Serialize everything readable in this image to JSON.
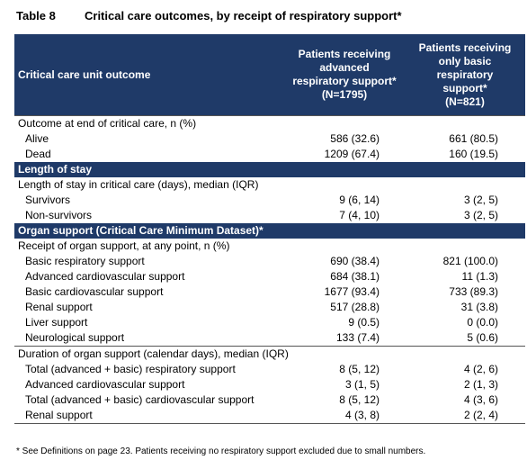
{
  "title": {
    "number": "Table 8",
    "text": "Critical care outcomes, by receipt of respiratory support*"
  },
  "table": {
    "columns": [
      {
        "lines": [
          "Critical care unit outcome"
        ]
      },
      {
        "lines": [
          "Patients receiving",
          "advanced",
          "respiratory support*",
          "(N=1795)"
        ]
      },
      {
        "lines": [
          "Patients receiving",
          "only basic",
          "respiratory",
          "support*",
          "(N=821)"
        ]
      }
    ],
    "sections": [
      {
        "groups": [
          {
            "label": "Outcome at end of critical care, n (%)",
            "rows": [
              [
                "Alive",
                "586 (32.6)",
                "661 (80.5)"
              ],
              [
                "Dead",
                "1209 (67.4)",
                "160 (19.5)"
              ]
            ]
          }
        ]
      },
      {
        "title": "Length of stay",
        "groups": [
          {
            "label": "Length of stay in critical care (days), median (IQR)",
            "rows": [
              [
                "Survivors",
                "9 (6, 14)",
                "3 (2, 5)"
              ],
              [
                "Non-survivors",
                "7 (4, 10)",
                "3 (2, 5)"
              ]
            ]
          }
        ]
      },
      {
        "title": "Organ support (Critical Care Minimum Dataset)*",
        "groups": [
          {
            "label": "Receipt of organ support, at any point, n (%)",
            "rows": [
              [
                "Basic respiratory support",
                "690 (38.4)",
                "821 (100.0)"
              ],
              [
                "Advanced cardiovascular support",
                "684 (38.1)",
                "11 (1.3)"
              ],
              [
                "Basic cardiovascular support",
                "1677 (93.4)",
                "733 (89.3)"
              ],
              [
                "Renal support",
                "517 (28.8)",
                "31 (3.8)"
              ],
              [
                "Liver support",
                "9 (0.5)",
                "0 (0.0)"
              ],
              [
                "Neurological support",
                "133 (7.4)",
                "5 (0.6)"
              ]
            ]
          },
          {
            "label": "Duration of organ support (calendar days), median (IQR)",
            "rows": [
              [
                "Total (advanced + basic) respiratory support",
                "8 (5, 12)",
                "4 (2, 6)"
              ],
              [
                "Advanced cardiovascular support",
                "3 (1, 5)",
                "2 (1, 3)"
              ],
              [
                "Total (advanced + basic) cardiovascular support",
                "8 (5, 12)",
                "4 (3, 6)"
              ],
              [
                "Renal support",
                "4 (3, 8)",
                "2 (2, 4)"
              ]
            ]
          }
        ]
      }
    ]
  },
  "footnote": "* See Definitions on page 23. Patients receiving no respiratory support excluded due to small numbers."
}
